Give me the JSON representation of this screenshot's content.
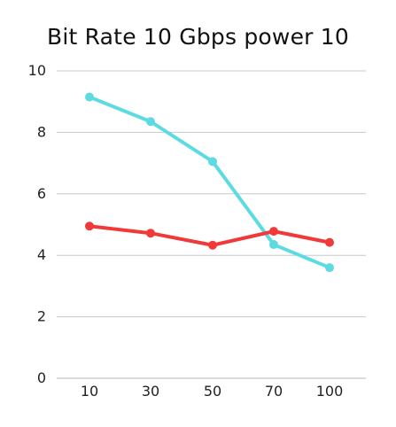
{
  "chart_data": {
    "type": "line",
    "title": "Bit Rate 10 Gbps power 10",
    "xlabel": "",
    "ylabel": "",
    "categories": [
      "10",
      "30",
      "50",
      "70",
      "100"
    ],
    "ylim": [
      0,
      10
    ],
    "yticks": [
      "0",
      "2",
      "4",
      "6",
      "8",
      "10"
    ],
    "grid": true,
    "legend": "none",
    "series": [
      {
        "values": [
          9.15,
          8.35,
          7.05,
          4.35,
          3.6
        ],
        "color": "#5ddbe3"
      },
      {
        "values": [
          4.95,
          4.72,
          4.33,
          4.78,
          4.42
        ],
        "color": "#f03a3a"
      }
    ]
  }
}
